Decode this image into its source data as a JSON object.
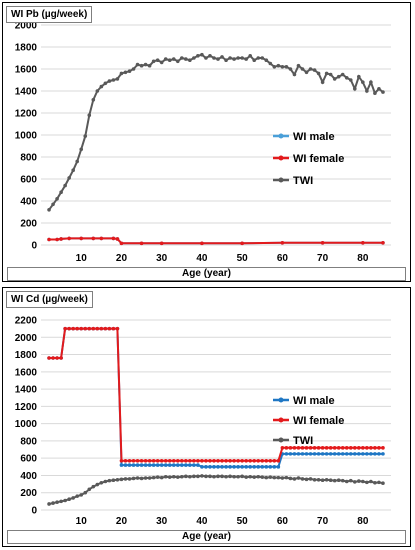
{
  "chart_data": [
    {
      "type": "line",
      "title": "WI Pb (µg/week)",
      "xlabel": "Age (year)",
      "ylabel": "",
      "xlim": [
        0,
        87
      ],
      "ylim": [
        0,
        2000
      ],
      "x_ticks": [
        10,
        20,
        30,
        40,
        50,
        60,
        70,
        80
      ],
      "y_ticks": [
        0,
        200,
        400,
        600,
        800,
        1000,
        1200,
        1400,
        1600,
        1800,
        2000
      ],
      "grid": true,
      "legend_position": "center-right",
      "series": [
        {
          "name": "WI male",
          "color": "#4a9fd8",
          "x": [
            2,
            4,
            5,
            7,
            10,
            13,
            15,
            18,
            19,
            20,
            25,
            30,
            40,
            50,
            60,
            70,
            80,
            85
          ],
          "values": [
            50,
            50,
            55,
            60,
            60,
            60,
            60,
            60,
            55,
            15,
            15,
            15,
            15,
            15,
            20,
            20,
            20,
            20
          ]
        },
        {
          "name": "WI female",
          "color": "#e31a1c",
          "x": [
            2,
            4,
            5,
            7,
            10,
            13,
            15,
            18,
            19,
            20,
            25,
            30,
            40,
            50,
            60,
            70,
            80,
            85
          ],
          "values": [
            50,
            50,
            55,
            60,
            60,
            60,
            60,
            60,
            55,
            15,
            15,
            15,
            15,
            15,
            20,
            20,
            20,
            20
          ]
        },
        {
          "name": "TWI",
          "color": "#595959",
          "x": [
            2,
            3,
            4,
            5,
            6,
            7,
            8,
            9,
            10,
            11,
            12,
            13,
            14,
            15,
            16,
            17,
            18,
            19,
            20,
            21,
            22,
            23,
            24,
            25,
            26,
            27,
            28,
            29,
            30,
            31,
            32,
            33,
            34,
            35,
            36,
            37,
            38,
            39,
            40,
            41,
            42,
            43,
            44,
            45,
            46,
            47,
            48,
            49,
            50,
            51,
            52,
            53,
            54,
            55,
            56,
            57,
            58,
            59,
            60,
            61,
            62,
            63,
            64,
            65,
            66,
            67,
            68,
            69,
            70,
            71,
            72,
            73,
            74,
            75,
            76,
            77,
            78,
            79,
            80,
            81,
            82,
            83,
            84,
            85
          ],
          "values": [
            320,
            370,
            420,
            480,
            540,
            610,
            680,
            760,
            870,
            990,
            1180,
            1320,
            1400,
            1440,
            1470,
            1490,
            1500,
            1510,
            1560,
            1570,
            1580,
            1600,
            1640,
            1630,
            1640,
            1630,
            1670,
            1680,
            1660,
            1690,
            1680,
            1690,
            1670,
            1700,
            1690,
            1680,
            1700,
            1720,
            1730,
            1700,
            1720,
            1700,
            1690,
            1710,
            1680,
            1700,
            1690,
            1700,
            1700,
            1690,
            1720,
            1680,
            1700,
            1700,
            1680,
            1650,
            1620,
            1630,
            1620,
            1620,
            1600,
            1550,
            1630,
            1600,
            1570,
            1600,
            1590,
            1560,
            1480,
            1560,
            1550,
            1510,
            1530,
            1550,
            1520,
            1500,
            1420,
            1530,
            1480,
            1400,
            1480,
            1380,
            1420,
            1390
          ]
        }
      ]
    },
    {
      "type": "line",
      "title": "WI Cd (µg/week)",
      "xlabel": "Age (year)",
      "ylabel": "",
      "xlim": [
        0,
        87
      ],
      "ylim": [
        0,
        2200
      ],
      "x_ticks": [
        10,
        20,
        30,
        40,
        50,
        60,
        70,
        80
      ],
      "y_ticks": [
        0,
        200,
        400,
        600,
        800,
        1000,
        1200,
        1400,
        1600,
        1800,
        2000,
        2200
      ],
      "grid": true,
      "legend_position": "center-right",
      "series": [
        {
          "name": "WI male",
          "color": "#1f77c4",
          "x": [
            2,
            3,
            4,
            5,
            6,
            7,
            8,
            9,
            10,
            11,
            12,
            13,
            14,
            15,
            16,
            17,
            18,
            19,
            20,
            21,
            22,
            23,
            24,
            25,
            26,
            27,
            28,
            29,
            30,
            31,
            32,
            33,
            34,
            35,
            36,
            37,
            38,
            39,
            40,
            41,
            42,
            43,
            44,
            45,
            46,
            47,
            48,
            49,
            50,
            51,
            52,
            53,
            54,
            55,
            56,
            57,
            58,
            59,
            60,
            61,
            62,
            63,
            64,
            65,
            66,
            67,
            68,
            69,
            70,
            71,
            72,
            73,
            74,
            75,
            76,
            77,
            78,
            79,
            80,
            81,
            82,
            83,
            84,
            85
          ],
          "values": [
            1760,
            1760,
            1760,
            1760,
            2100,
            2100,
            2100,
            2100,
            2100,
            2100,
            2100,
            2100,
            2100,
            2100,
            2100,
            2100,
            2100,
            2100,
            520,
            520,
            520,
            520,
            520,
            520,
            520,
            520,
            520,
            520,
            520,
            520,
            520,
            520,
            520,
            520,
            520,
            520,
            520,
            520,
            500,
            500,
            500,
            500,
            500,
            500,
            500,
            500,
            500,
            500,
            500,
            500,
            500,
            500,
            500,
            500,
            500,
            500,
            500,
            500,
            650,
            650,
            650,
            650,
            650,
            650,
            650,
            650,
            650,
            650,
            650,
            650,
            650,
            650,
            650,
            650,
            650,
            650,
            650,
            650,
            650,
            650,
            650,
            650,
            650,
            650
          ]
        },
        {
          "name": "WI female",
          "color": "#e31a1c",
          "x": [
            2,
            3,
            4,
            5,
            6,
            7,
            8,
            9,
            10,
            11,
            12,
            13,
            14,
            15,
            16,
            17,
            18,
            19,
            20,
            21,
            22,
            23,
            24,
            25,
            26,
            27,
            28,
            29,
            30,
            31,
            32,
            33,
            34,
            35,
            36,
            37,
            38,
            39,
            40,
            41,
            42,
            43,
            44,
            45,
            46,
            47,
            48,
            49,
            50,
            51,
            52,
            53,
            54,
            55,
            56,
            57,
            58,
            59,
            60,
            61,
            62,
            63,
            64,
            65,
            66,
            67,
            68,
            69,
            70,
            71,
            72,
            73,
            74,
            75,
            76,
            77,
            78,
            79,
            80,
            81,
            82,
            83,
            84,
            85
          ],
          "values": [
            1760,
            1760,
            1760,
            1760,
            2100,
            2100,
            2100,
            2100,
            2100,
            2100,
            2100,
            2100,
            2100,
            2100,
            2100,
            2100,
            2100,
            2100,
            570,
            570,
            570,
            570,
            570,
            570,
            570,
            570,
            570,
            570,
            570,
            570,
            570,
            570,
            570,
            570,
            570,
            570,
            570,
            570,
            570,
            570,
            570,
            570,
            570,
            570,
            570,
            570,
            570,
            570,
            570,
            570,
            570,
            570,
            570,
            570,
            570,
            570,
            570,
            570,
            720,
            720,
            720,
            720,
            720,
            720,
            720,
            720,
            720,
            720,
            720,
            720,
            720,
            720,
            720,
            720,
            720,
            720,
            720,
            720,
            720,
            720,
            720,
            720,
            720,
            720
          ]
        },
        {
          "name": "TWI",
          "color": "#595959",
          "x": [
            2,
            3,
            4,
            5,
            6,
            7,
            8,
            9,
            10,
            11,
            12,
            13,
            14,
            15,
            16,
            17,
            18,
            19,
            20,
            21,
            22,
            23,
            24,
            25,
            26,
            27,
            28,
            29,
            30,
            31,
            32,
            33,
            34,
            35,
            36,
            37,
            38,
            39,
            40,
            41,
            42,
            43,
            44,
            45,
            46,
            47,
            48,
            49,
            50,
            51,
            52,
            53,
            54,
            55,
            56,
            57,
            58,
            59,
            60,
            61,
            62,
            63,
            64,
            65,
            66,
            67,
            68,
            69,
            70,
            71,
            72,
            73,
            74,
            75,
            76,
            77,
            78,
            79,
            80,
            81,
            82,
            83,
            84,
            85
          ],
          "values": [
            70,
            80,
            90,
            100,
            110,
            125,
            140,
            160,
            175,
            200,
            240,
            270,
            295,
            315,
            330,
            340,
            345,
            350,
            355,
            360,
            360,
            365,
            370,
            365,
            370,
            370,
            375,
            380,
            375,
            385,
            380,
            385,
            380,
            385,
            390,
            385,
            390,
            390,
            395,
            390,
            390,
            385,
            390,
            390,
            385,
            390,
            385,
            385,
            390,
            380,
            385,
            380,
            385,
            380,
            375,
            380,
            375,
            375,
            370,
            375,
            365,
            360,
            370,
            360,
            355,
            360,
            350,
            350,
            345,
            350,
            345,
            340,
            345,
            340,
            330,
            340,
            325,
            335,
            330,
            320,
            330,
            315,
            320,
            310
          ]
        }
      ]
    }
  ]
}
